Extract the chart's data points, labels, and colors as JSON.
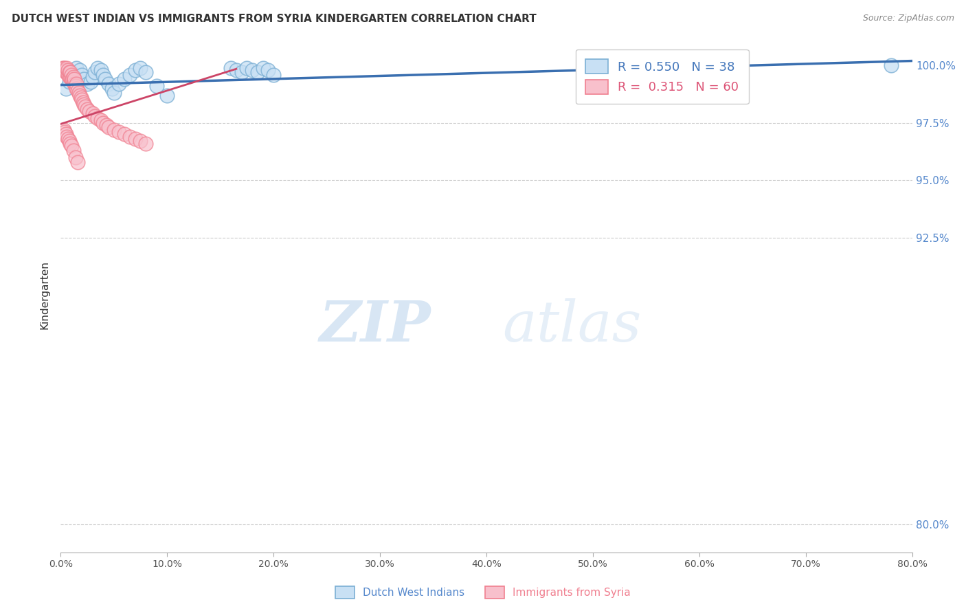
{
  "title": "DUTCH WEST INDIAN VS IMMIGRANTS FROM SYRIA KINDERGARTEN CORRELATION CHART",
  "source": "Source: ZipAtlas.com",
  "ylabel": "Kindergarten",
  "xmin": 0.0,
  "xmax": 0.8,
  "ymin": 0.788,
  "ymax": 1.012,
  "blue_color": "#7BAFD4",
  "pink_color": "#F08090",
  "trendline_blue_color": "#3A6FB0",
  "trendline_pink_color": "#CC4466",
  "y_ticks": [
    1.0,
    0.975,
    0.95,
    0.925,
    0.8
  ],
  "y_labels": [
    "100.0%",
    "97.5%",
    "95.0%",
    "92.5%",
    "80.0%"
  ],
  "x_ticks": [
    0.0,
    0.1,
    0.2,
    0.3,
    0.4,
    0.5,
    0.6,
    0.7,
    0.8
  ],
  "x_labels": [
    "0.0%",
    "10.0%",
    "20.0%",
    "30.0%",
    "40.0%",
    "50.0%",
    "60.0%",
    "70.0%",
    "80.0%"
  ],
  "blue_x": [
    0.005,
    0.008,
    0.01,
    0.012,
    0.015,
    0.018,
    0.02,
    0.022,
    0.025,
    0.028,
    0.03,
    0.032,
    0.035,
    0.038,
    0.04,
    0.042,
    0.045,
    0.048,
    0.05,
    0.055,
    0.06,
    0.065,
    0.07,
    0.075,
    0.08,
    0.09,
    0.1,
    0.16,
    0.165,
    0.17,
    0.175,
    0.18,
    0.185,
    0.19,
    0.195,
    0.2,
    0.62,
    0.78
  ],
  "blue_y": [
    0.99,
    0.993,
    0.997,
    0.995,
    0.999,
    0.998,
    0.996,
    0.994,
    0.992,
    0.993,
    0.995,
    0.997,
    0.999,
    0.998,
    0.996,
    0.994,
    0.992,
    0.99,
    0.988,
    0.992,
    0.994,
    0.996,
    0.998,
    0.999,
    0.997,
    0.991,
    0.987,
    0.999,
    0.998,
    0.997,
    0.999,
    0.998,
    0.997,
    0.999,
    0.998,
    0.996,
    0.999,
    1.0
  ],
  "pink_x": [
    0.002,
    0.003,
    0.003,
    0.004,
    0.004,
    0.005,
    0.005,
    0.006,
    0.006,
    0.007,
    0.007,
    0.008,
    0.008,
    0.009,
    0.009,
    0.01,
    0.01,
    0.011,
    0.012,
    0.012,
    0.013,
    0.013,
    0.014,
    0.015,
    0.015,
    0.016,
    0.017,
    0.018,
    0.019,
    0.02,
    0.021,
    0.022,
    0.023,
    0.025,
    0.027,
    0.03,
    0.032,
    0.035,
    0.038,
    0.04,
    0.043,
    0.045,
    0.05,
    0.055,
    0.06,
    0.065,
    0.07,
    0.075,
    0.08,
    0.003,
    0.004,
    0.005,
    0.006,
    0.007,
    0.008,
    0.009,
    0.01,
    0.012,
    0.014,
    0.016
  ],
  "pink_y": [
    0.999,
    0.999,
    0.998,
    0.998,
    0.999,
    0.997,
    0.998,
    0.997,
    0.999,
    0.996,
    0.998,
    0.995,
    0.997,
    0.995,
    0.997,
    0.994,
    0.996,
    0.994,
    0.993,
    0.995,
    0.992,
    0.994,
    0.991,
    0.99,
    0.992,
    0.989,
    0.988,
    0.987,
    0.986,
    0.985,
    0.984,
    0.983,
    0.982,
    0.981,
    0.98,
    0.979,
    0.978,
    0.977,
    0.976,
    0.975,
    0.974,
    0.973,
    0.972,
    0.971,
    0.97,
    0.969,
    0.968,
    0.967,
    0.966,
    0.972,
    0.971,
    0.97,
    0.969,
    0.968,
    0.967,
    0.966,
    0.965,
    0.963,
    0.96,
    0.958
  ],
  "trendline_blue_x0": 0.0,
  "trendline_blue_x1": 0.8,
  "trendline_blue_y0": 0.9915,
  "trendline_blue_y1": 1.002,
  "trendline_pink_x0": 0.0,
  "trendline_pink_x1": 0.165,
  "trendline_pink_y0": 0.9745,
  "trendline_pink_y1": 0.9985
}
